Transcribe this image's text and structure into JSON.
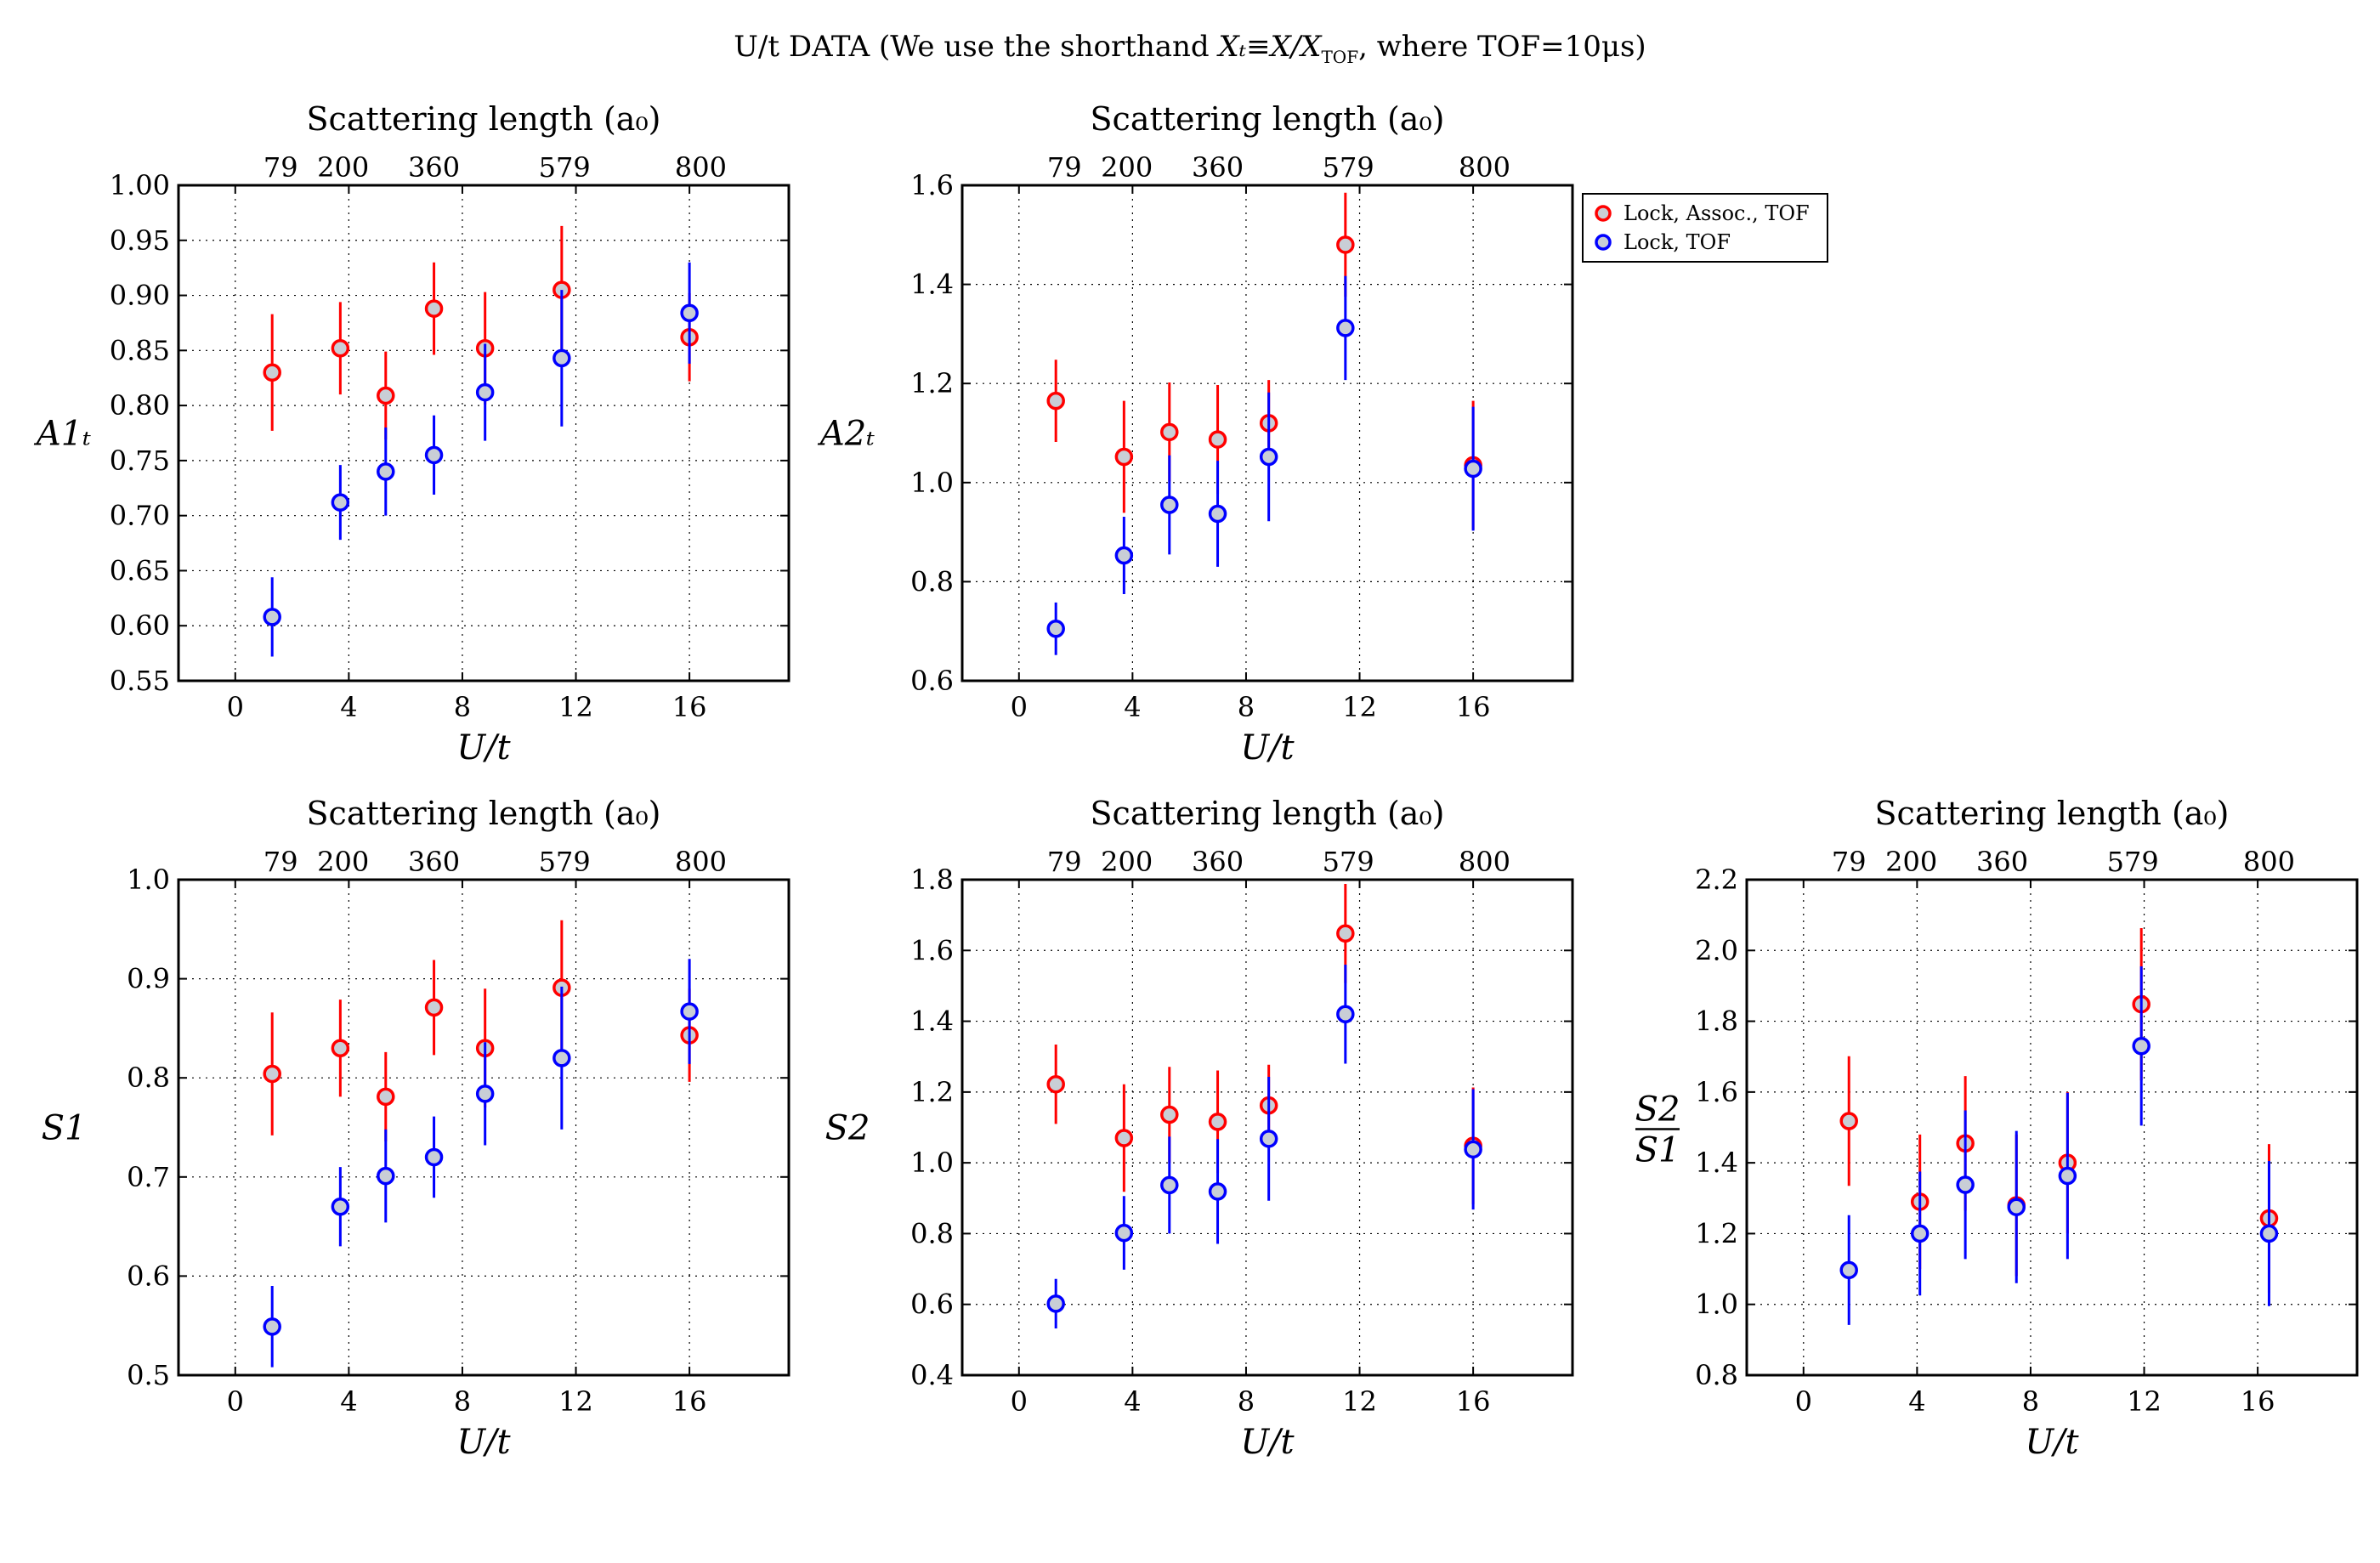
{
  "figure": {
    "suptitle_prefix": "U/t DATA  (We use the shorthand ",
    "suptitle_math": "Xₜ≡X/X",
    "suptitle_math_sub": "TOF",
    "suptitle_suffix": ", where TOF=10μs)"
  },
  "legend": {
    "placement": "right of top-middle panel",
    "entries": [
      {
        "label": "Lock, Assoc., TOF",
        "color": "#ff0000"
      },
      {
        "label": "Lock, TOF",
        "color": "#0000ff"
      }
    ]
  },
  "colors": {
    "series_red": "#ff0000",
    "series_blue": "#0000ff",
    "marker_fill": "#c9ced6"
  },
  "chart_data": [
    {
      "type": "scatter",
      "ylabel": "A1ₜ",
      "xlabel": "U/t",
      "top_label": "Scattering length (a₀)",
      "xlim": [
        -2,
        19.5
      ],
      "ylim": [
        0.55,
        1.0
      ],
      "xticks": [
        0,
        4,
        8,
        12,
        16
      ],
      "xtick_labels": [
        "0",
        "4",
        "8",
        "12",
        "16"
      ],
      "yticks": [
        0.55,
        0.6,
        0.65,
        0.7,
        0.75,
        0.8,
        0.85,
        0.9,
        0.95,
        1.0
      ],
      "ytick_labels": [
        "0.55",
        "0.60",
        "0.65",
        "0.70",
        "0.75",
        "0.80",
        "0.85",
        "0.90",
        "0.95",
        "1.00"
      ],
      "top_ticks": [
        1.6,
        3.8,
        7.0,
        11.6,
        16.4
      ],
      "top_tick_labels": [
        "79",
        "200",
        "360",
        "579",
        "800"
      ],
      "grid": true,
      "series": [
        {
          "name": "Lock, Assoc., TOF",
          "color": "#ff0000",
          "x": [
            1.3,
            3.7,
            5.3,
            7.0,
            8.8,
            11.5,
            16.0
          ],
          "y": [
            0.83,
            0.852,
            0.809,
            0.888,
            0.852,
            0.905,
            0.862
          ],
          "err": [
            0.053,
            0.042,
            0.04,
            0.042,
            0.051,
            0.058,
            0.04
          ]
        },
        {
          "name": "Lock, TOF",
          "color": "#0000ff",
          "x": [
            1.3,
            3.7,
            5.3,
            7.0,
            8.8,
            11.5,
            16.0
          ],
          "y": [
            0.608,
            0.712,
            0.74,
            0.755,
            0.812,
            0.843,
            0.884
          ],
          "err": [
            0.036,
            0.034,
            0.04,
            0.036,
            0.044,
            0.062,
            0.046
          ]
        }
      ]
    },
    {
      "type": "scatter",
      "ylabel": "A2ₜ",
      "xlabel": "U/t",
      "top_label": "Scattering length (a₀)",
      "xlim": [
        -2,
        19.5
      ],
      "ylim": [
        0.6,
        1.6
      ],
      "xticks": [
        0,
        4,
        8,
        12,
        16
      ],
      "xtick_labels": [
        "0",
        "4",
        "8",
        "12",
        "16"
      ],
      "yticks": [
        0.6,
        0.8,
        1.0,
        1.2,
        1.4,
        1.6
      ],
      "ytick_labels": [
        "0.6",
        "0.8",
        "1.0",
        "1.2",
        "1.4",
        "1.6"
      ],
      "top_ticks": [
        1.6,
        3.8,
        7.0,
        11.6,
        16.4
      ],
      "top_tick_labels": [
        "79",
        "200",
        "360",
        "579",
        "800"
      ],
      "grid": true,
      "series": [
        {
          "name": "Lock, Assoc., TOF",
          "color": "#ff0000",
          "x": [
            1.3,
            3.7,
            5.3,
            7.0,
            8.8,
            11.5,
            16.0
          ],
          "y": [
            1.165,
            1.052,
            1.102,
            1.087,
            1.12,
            1.48,
            1.035
          ],
          "err": [
            0.083,
            0.113,
            0.1,
            0.11,
            0.087,
            0.105,
            0.13
          ]
        },
        {
          "name": "Lock, TOF",
          "color": "#0000ff",
          "x": [
            1.3,
            3.7,
            5.3,
            7.0,
            8.8,
            11.5,
            16.0
          ],
          "y": [
            0.705,
            0.853,
            0.955,
            0.937,
            1.052,
            1.312,
            1.028
          ],
          "err": [
            0.053,
            0.078,
            0.1,
            0.107,
            0.13,
            0.105,
            0.125
          ]
        }
      ]
    },
    {
      "type": "scatter",
      "ylabel": "S1",
      "xlabel": "U/t",
      "top_label": "Scattering length (a₀)",
      "xlim": [
        -2,
        19.5
      ],
      "ylim": [
        0.5,
        1.0
      ],
      "xticks": [
        0,
        4,
        8,
        12,
        16
      ],
      "xtick_labels": [
        "0",
        "4",
        "8",
        "12",
        "16"
      ],
      "yticks": [
        0.5,
        0.6,
        0.7,
        0.8,
        0.9,
        1.0
      ],
      "ytick_labels": [
        "0.5",
        "0.6",
        "0.7",
        "0.8",
        "0.9",
        "1.0"
      ],
      "top_ticks": [
        1.6,
        3.8,
        7.0,
        11.6,
        16.4
      ],
      "top_tick_labels": [
        "79",
        "200",
        "360",
        "579",
        "800"
      ],
      "grid": true,
      "series": [
        {
          "name": "Lock, Assoc., TOF",
          "color": "#ff0000",
          "x": [
            1.3,
            3.7,
            5.3,
            7.0,
            8.8,
            11.5,
            16.0
          ],
          "y": [
            0.804,
            0.83,
            0.781,
            0.871,
            0.83,
            0.891,
            0.843
          ],
          "err": [
            0.062,
            0.049,
            0.045,
            0.048,
            0.06,
            0.068,
            0.047
          ]
        },
        {
          "name": "Lock, TOF",
          "color": "#0000ff",
          "x": [
            1.3,
            3.7,
            5.3,
            7.0,
            8.8,
            11.5,
            16.0
          ],
          "y": [
            0.549,
            0.67,
            0.701,
            0.72,
            0.784,
            0.82,
            0.867
          ],
          "err": [
            0.041,
            0.04,
            0.047,
            0.041,
            0.052,
            0.072,
            0.053
          ]
        }
      ]
    },
    {
      "type": "scatter",
      "ylabel": "S2",
      "xlabel": "U/t",
      "top_label": "Scattering length (a₀)",
      "xlim": [
        -2,
        19.5
      ],
      "ylim": [
        0.4,
        1.8
      ],
      "xticks": [
        0,
        4,
        8,
        12,
        16
      ],
      "xtick_labels": [
        "0",
        "4",
        "8",
        "12",
        "16"
      ],
      "yticks": [
        0.4,
        0.6,
        0.8,
        1.0,
        1.2,
        1.4,
        1.6,
        1.8
      ],
      "ytick_labels": [
        "0.4",
        "0.6",
        "0.8",
        "1.0",
        "1.2",
        "1.4",
        "1.6",
        "1.8"
      ],
      "top_ticks": [
        1.6,
        3.8,
        7.0,
        11.6,
        16.4
      ],
      "top_tick_labels": [
        "79",
        "200",
        "360",
        "579",
        "800"
      ],
      "grid": true,
      "series": [
        {
          "name": "Lock, Assoc., TOF",
          "color": "#ff0000",
          "x": [
            1.3,
            3.7,
            5.3,
            7.0,
            8.8,
            11.5,
            16.0
          ],
          "y": [
            1.222,
            1.07,
            1.136,
            1.116,
            1.162,
            1.648,
            1.048
          ],
          "err": [
            0.112,
            0.152,
            0.135,
            0.145,
            0.115,
            0.14,
            0.165
          ]
        },
        {
          "name": "Lock, TOF",
          "color": "#0000ff",
          "x": [
            1.3,
            3.7,
            5.3,
            7.0,
            8.8,
            11.5,
            16.0
          ],
          "y": [
            0.602,
            0.802,
            0.937,
            0.919,
            1.068,
            1.42,
            1.038
          ],
          "err": [
            0.07,
            0.104,
            0.137,
            0.148,
            0.175,
            0.14,
            0.17
          ]
        }
      ]
    },
    {
      "type": "scatter",
      "ylabel_num": "S2",
      "ylabel_den": "S1",
      "xlabel": "U/t",
      "top_label": "Scattering length (a₀)",
      "xlim": [
        -2,
        19.5
      ],
      "ylim": [
        0.8,
        2.2
      ],
      "xticks": [
        0,
        4,
        8,
        12,
        16
      ],
      "xtick_labels": [
        "0",
        "4",
        "8",
        "12",
        "16"
      ],
      "yticks": [
        0.8,
        1.0,
        1.2,
        1.4,
        1.6,
        1.8,
        2.0,
        2.2
      ],
      "ytick_labels": [
        "0.8",
        "1.0",
        "1.2",
        "1.4",
        "1.6",
        "1.8",
        "2.0",
        "2.2"
      ],
      "top_ticks": [
        1.6,
        3.8,
        7.0,
        11.6,
        16.4
      ],
      "top_tick_labels": [
        "79",
        "200",
        "360",
        "579",
        "800"
      ],
      "grid": true,
      "series": [
        {
          "name": "Lock, Assoc., TOF",
          "color": "#ff0000",
          "x": [
            1.6,
            4.1,
            5.7,
            7.5,
            9.3,
            11.9,
            16.4
          ],
          "y": [
            1.518,
            1.29,
            1.455,
            1.28,
            1.4,
            1.848,
            1.243
          ],
          "err": [
            0.183,
            0.19,
            0.19,
            0.2,
            0.2,
            0.215,
            0.21
          ]
        },
        {
          "name": "Lock, TOF",
          "color": "#0000ff",
          "x": [
            1.6,
            4.1,
            5.7,
            7.5,
            9.3,
            11.9,
            16.4
          ],
          "y": [
            1.097,
            1.2,
            1.338,
            1.275,
            1.363,
            1.73,
            1.2
          ],
          "err": [
            0.155,
            0.175,
            0.21,
            0.215,
            0.235,
            0.225,
            0.205
          ]
        }
      ]
    }
  ]
}
